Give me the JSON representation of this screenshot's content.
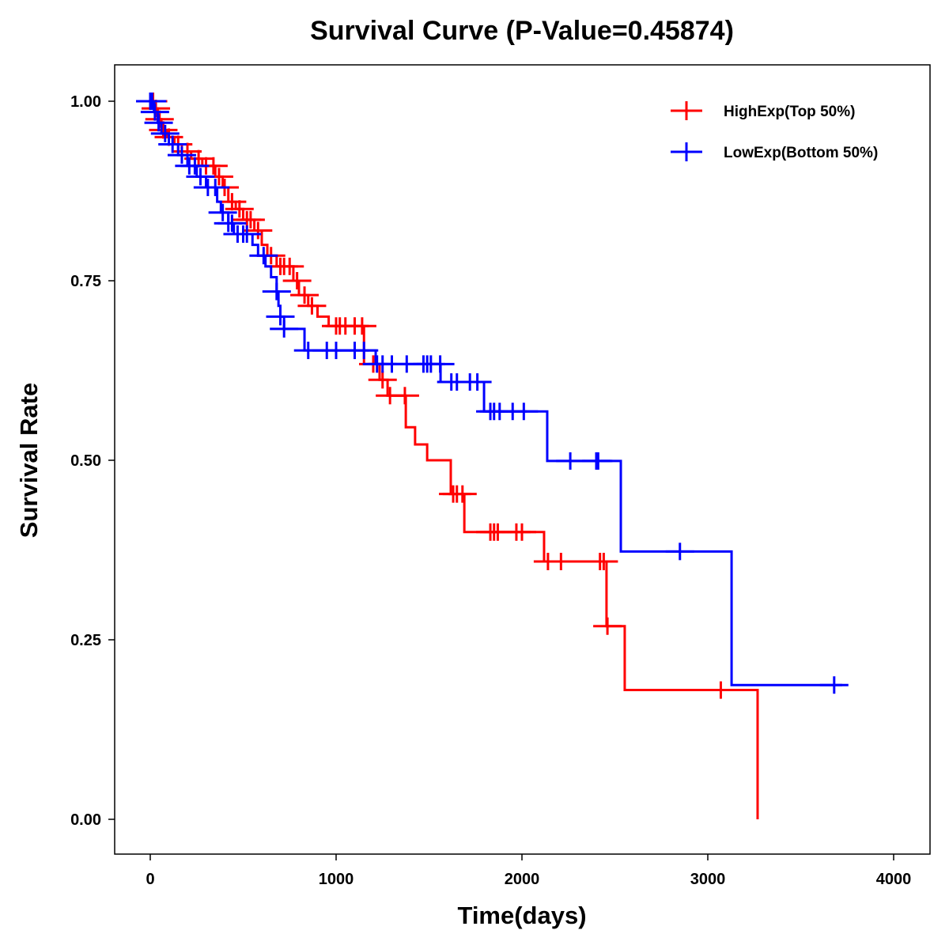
{
  "chart_data": {
    "type": "line",
    "title": "Survival Curve (P-Value=0.45874)",
    "xlabel": "Time(days)",
    "ylabel": "Survival Rate",
    "xlim": [
      -200,
      4200
    ],
    "ylim": [
      -0.05,
      1.05
    ],
    "xticks": [
      0,
      1000,
      2000,
      3000,
      4000
    ],
    "xtick_labels": [
      "0",
      "1000",
      "2000",
      "3000",
      "4000"
    ],
    "yticks": [
      0,
      0.25,
      0.5,
      0.75,
      1
    ],
    "ytick_labels": [
      "0.00",
      "0.25",
      "0.50",
      "0.75",
      "1.00"
    ],
    "legend_position": "top-right",
    "grid": false,
    "series": [
      {
        "name": "HighExp(Top 50%)",
        "color": "#FF0000",
        "steps": [
          [
            0,
            1
          ],
          [
            20,
            0.99
          ],
          [
            40,
            0.975
          ],
          [
            60,
            0.96
          ],
          [
            90,
            0.95
          ],
          [
            130,
            0.94
          ],
          [
            170,
            0.93
          ],
          [
            220,
            0.92
          ],
          [
            280,
            0.91
          ],
          [
            350,
            0.895
          ],
          [
            390,
            0.88
          ],
          [
            420,
            0.86
          ],
          [
            460,
            0.85
          ],
          [
            500,
            0.835
          ],
          [
            560,
            0.82
          ],
          [
            600,
            0.8
          ],
          [
            630,
            0.785
          ],
          [
            680,
            0.77
          ],
          [
            770,
            0.75
          ],
          [
            800,
            0.73
          ],
          [
            850,
            0.715
          ],
          [
            900,
            0.7
          ],
          [
            960,
            0.687
          ],
          [
            1150,
            0.634
          ],
          [
            1234,
            0.612
          ],
          [
            1277,
            0.59
          ],
          [
            1375,
            0.546
          ],
          [
            1425,
            0.522
          ],
          [
            1490,
            0.5
          ],
          [
            1617,
            0.453
          ],
          [
            1690,
            0.4
          ],
          [
            2119,
            0.359
          ],
          [
            2455,
            0.269
          ],
          [
            2553,
            0.18
          ],
          [
            3268,
            0.0
          ]
        ],
        "censored": [
          5,
          15,
          30,
          50,
          70,
          100,
          150,
          200,
          260,
          300,
          340,
          370,
          400,
          440,
          480,
          520,
          540,
          580,
          650,
          700,
          720,
          750,
          790,
          830,
          870,
          1000,
          1020,
          1050,
          1100,
          1140,
          1200,
          1250,
          1290,
          1370,
          1630,
          1650,
          1680,
          1830,
          1850,
          1870,
          1970,
          2000,
          2140,
          2210,
          2420,
          2440,
          2460,
          3070
        ]
      },
      {
        "name": "LowExp(Bottom 50%)",
        "color": "#0000FF",
        "steps": [
          [
            0,
            1
          ],
          [
            20,
            0.985
          ],
          [
            40,
            0.97
          ],
          [
            60,
            0.955
          ],
          [
            100,
            0.94
          ],
          [
            150,
            0.925
          ],
          [
            200,
            0.91
          ],
          [
            250,
            0.895
          ],
          [
            300,
            0.88
          ],
          [
            360,
            0.86
          ],
          [
            380,
            0.845
          ],
          [
            420,
            0.83
          ],
          [
            450,
            0.815
          ],
          [
            550,
            0.8
          ],
          [
            580,
            0.785
          ],
          [
            620,
            0.77
          ],
          [
            650,
            0.755
          ],
          [
            680,
            0.735
          ],
          [
            690,
            0.715
          ],
          [
            700,
            0.7
          ],
          [
            720,
            0.683
          ],
          [
            830,
            0.653
          ],
          [
            1213,
            0.634
          ],
          [
            1562,
            0.609
          ],
          [
            1796,
            0.568
          ],
          [
            2136,
            0.499
          ],
          [
            2532,
            0.373
          ],
          [
            3128,
            0.187
          ]
        ],
        "end_time": 3723,
        "censored": [
          0,
          10,
          25,
          45,
          80,
          120,
          170,
          210,
          240,
          270,
          310,
          350,
          390,
          420,
          440,
          470,
          500,
          520,
          610,
          680,
          700,
          720,
          850,
          950,
          1000,
          1100,
          1150,
          1220,
          1250,
          1300,
          1380,
          1470,
          1490,
          1510,
          1560,
          1620,
          1650,
          1720,
          1760,
          1830,
          1850,
          1880,
          1950,
          2010,
          2260,
          2400,
          2410,
          2850,
          3680
        ]
      }
    ]
  }
}
